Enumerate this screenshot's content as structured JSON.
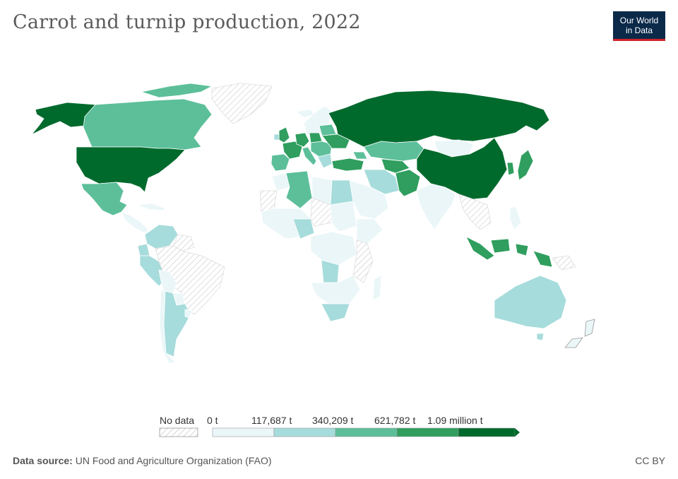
{
  "title": "Carrot and turnip production, 2022",
  "logo": {
    "line1": "Our World",
    "line2": "in Data"
  },
  "legend": {
    "no_data_label": "No data",
    "bins": [
      {
        "label": "0 t",
        "color": "#eaf6f8"
      },
      {
        "label": "117,687 t",
        "color": "#a6dcdb"
      },
      {
        "label": "340,209 t",
        "color": "#5cbf9a"
      },
      {
        "label": "621,782 t",
        "color": "#2f9e5e"
      },
      {
        "label": "1.09 million t",
        "color": "#006a2d"
      }
    ]
  },
  "colors": {
    "no_data_hatch": "#bdbdbd",
    "border": "#ffffff",
    "bin0": "#eaf6f8",
    "bin1": "#a6dcdb",
    "bin2": "#5cbf9a",
    "bin3": "#2f9e5e",
    "bin4": "#006a2d"
  },
  "footer": {
    "source_label": "Data source:",
    "source_text": "UN Food and Agriculture Organization (FAO)",
    "license": "CC BY"
  }
}
